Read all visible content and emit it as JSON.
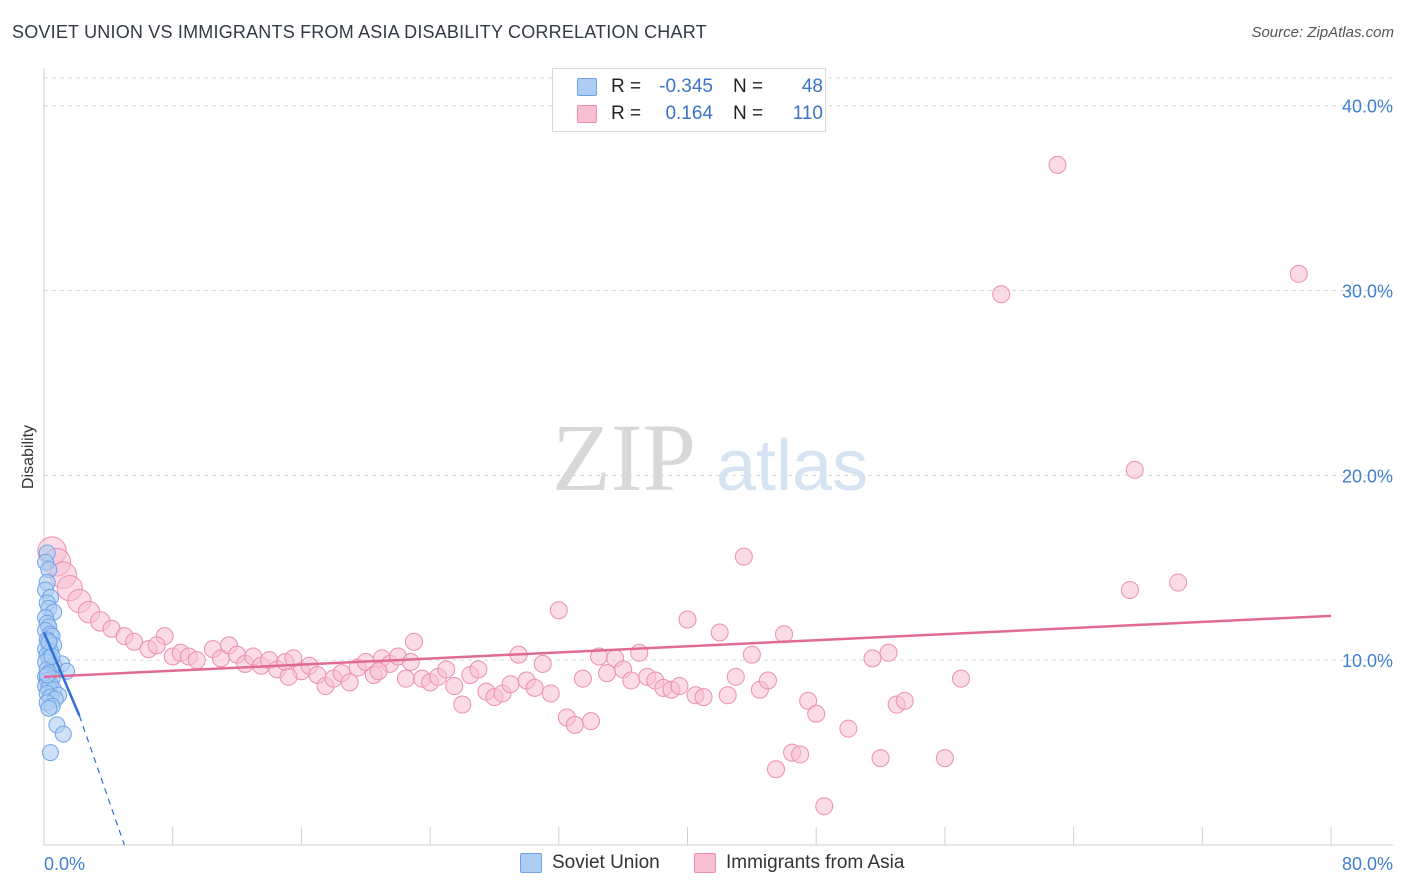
{
  "header": {
    "title": "SOVIET UNION VS IMMIGRANTS FROM ASIA DISABILITY CORRELATION CHART",
    "source": "Source: ZipAtlas.com"
  },
  "watermark": {
    "zip": "ZIP",
    "atlas": "atlas"
  },
  "legend": {
    "rows": [
      {
        "r_label": "R =",
        "r_value": "-0.345",
        "n_label": "N =",
        "n_value": "48"
      },
      {
        "r_label": "R =",
        "r_value": "0.164",
        "n_label": "N =",
        "n_value": "110"
      }
    ]
  },
  "bottom_legend": {
    "series1": "Soviet Union",
    "series2": "Immigrants from Asia"
  },
  "colors": {
    "soviet_fill": "#aecdf3",
    "soviet_stroke": "#6fa3e6",
    "soviet_line": "#2f6fd6",
    "asia_fill": "#f7bfd2",
    "asia_stroke": "#ec8fb0",
    "asia_line": "#e06a95",
    "tick_label": "#3f7fd1",
    "grid": "#d9d9d9"
  },
  "chart_data": {
    "type": "scatter",
    "title": "SOVIET UNION VS IMMIGRANTS FROM ASIA DISABILITY CORRELATION CHART",
    "xlabel": "",
    "ylabel": "Disability",
    "xlim": [
      0,
      80
    ],
    "ylim": [
      0,
      41.5
    ],
    "x_tick_labels": [
      "0.0%",
      "80.0%"
    ],
    "y_ticks": [
      10,
      20,
      30,
      40
    ],
    "y_tick_labels": [
      "10.0%",
      "20.0%",
      "30.0%",
      "40.0%"
    ],
    "grid": "horizontal dashed",
    "legend_placement": "top-center",
    "series": [
      {
        "name": "Soviet Union",
        "r": -0.345,
        "n": 48,
        "trend": {
          "x": [
            0,
            2.2
          ],
          "y": [
            11.5,
            7.0
          ],
          "dashed_to": [
            5.0,
            0.0
          ]
        },
        "points": [
          [
            0.2,
            15.8
          ],
          [
            0.1,
            15.3
          ],
          [
            0.3,
            14.9
          ],
          [
            0.2,
            14.2
          ],
          [
            0.1,
            13.8
          ],
          [
            0.4,
            13.4
          ],
          [
            0.2,
            13.1
          ],
          [
            0.3,
            12.8
          ],
          [
            0.6,
            12.6
          ],
          [
            0.1,
            12.3
          ],
          [
            0.2,
            12.0
          ],
          [
            0.3,
            11.8
          ],
          [
            0.1,
            11.6
          ],
          [
            0.4,
            11.4
          ],
          [
            0.5,
            11.3
          ],
          [
            0.2,
            11.1
          ],
          [
            0.3,
            10.9
          ],
          [
            0.6,
            10.8
          ],
          [
            0.1,
            10.6
          ],
          [
            0.4,
            10.5
          ],
          [
            0.2,
            10.3
          ],
          [
            0.3,
            10.1
          ],
          [
            0.1,
            9.9
          ],
          [
            1.1,
            9.8
          ],
          [
            0.6,
            9.7
          ],
          [
            0.2,
            9.5
          ],
          [
            1.4,
            9.4
          ],
          [
            0.3,
            9.3
          ],
          [
            0.1,
            9.1
          ],
          [
            0.5,
            9.0
          ],
          [
            0.2,
            8.9
          ],
          [
            0.4,
            8.7
          ],
          [
            0.1,
            8.6
          ],
          [
            0.3,
            8.5
          ],
          [
            0.6,
            8.4
          ],
          [
            0.2,
            8.2
          ],
          [
            0.9,
            8.1
          ],
          [
            0.4,
            8.0
          ],
          [
            0.7,
            7.9
          ],
          [
            0.2,
            7.7
          ],
          [
            0.5,
            7.5
          ],
          [
            0.3,
            7.4
          ],
          [
            0.8,
            6.5
          ],
          [
            1.2,
            6.0
          ],
          [
            0.4,
            5.0
          ],
          [
            0.2,
            9.2
          ],
          [
            0.3,
            11.0
          ],
          [
            0.5,
            10.2
          ]
        ]
      },
      {
        "name": "Immigrants from Asia",
        "r": 0.164,
        "n": 110,
        "trend": {
          "x": [
            0,
            80
          ],
          "y": [
            9.1,
            12.4
          ]
        },
        "points": [
          [
            0.5,
            15.9
          ],
          [
            0.8,
            15.3
          ],
          [
            1.2,
            14.6
          ],
          [
            1.6,
            13.9
          ],
          [
            2.2,
            13.2
          ],
          [
            2.8,
            12.6
          ],
          [
            3.5,
            12.1
          ],
          [
            4.2,
            11.7
          ],
          [
            5.0,
            11.3
          ],
          [
            5.6,
            11.0
          ],
          [
            7.5,
            11.3
          ],
          [
            6.5,
            10.6
          ],
          [
            7.0,
            10.8
          ],
          [
            8.0,
            10.2
          ],
          [
            8.5,
            10.4
          ],
          [
            9.0,
            10.2
          ],
          [
            9.5,
            10.0
          ],
          [
            10.5,
            10.6
          ],
          [
            11.0,
            10.1
          ],
          [
            11.5,
            10.8
          ],
          [
            12.0,
            10.3
          ],
          [
            12.5,
            9.8
          ],
          [
            13.0,
            10.2
          ],
          [
            13.5,
            9.7
          ],
          [
            14.0,
            10.0
          ],
          [
            14.5,
            9.5
          ],
          [
            15.0,
            9.9
          ],
          [
            15.5,
            10.1
          ],
          [
            16.0,
            9.4
          ],
          [
            16.5,
            9.7
          ],
          [
            17.0,
            9.2
          ],
          [
            17.5,
            8.6
          ],
          [
            18.0,
            9.0
          ],
          [
            18.5,
            9.3
          ],
          [
            19.0,
            8.8
          ],
          [
            19.5,
            9.6
          ],
          [
            20.0,
            9.9
          ],
          [
            20.5,
            9.2
          ],
          [
            21.0,
            10.1
          ],
          [
            21.5,
            9.8
          ],
          [
            22.0,
            10.2
          ],
          [
            22.5,
            9.0
          ],
          [
            23.0,
            11.0
          ],
          [
            23.5,
            9.0
          ],
          [
            24.0,
            8.8
          ],
          [
            24.5,
            9.1
          ],
          [
            25.0,
            9.5
          ],
          [
            25.5,
            8.6
          ],
          [
            26.0,
            7.6
          ],
          [
            26.5,
            9.2
          ],
          [
            27.0,
            9.5
          ],
          [
            27.5,
            8.3
          ],
          [
            28.0,
            8.0
          ],
          [
            28.5,
            8.2
          ],
          [
            29.0,
            8.7
          ],
          [
            29.5,
            10.3
          ],
          [
            30.0,
            8.9
          ],
          [
            30.5,
            8.5
          ],
          [
            31.0,
            9.8
          ],
          [
            31.5,
            8.2
          ],
          [
            32.0,
            12.7
          ],
          [
            32.5,
            6.9
          ],
          [
            33.0,
            6.5
          ],
          [
            33.5,
            9.0
          ],
          [
            34.0,
            6.7
          ],
          [
            34.5,
            10.2
          ],
          [
            35.0,
            9.3
          ],
          [
            35.5,
            10.1
          ],
          [
            36.0,
            9.5
          ],
          [
            36.5,
            8.9
          ],
          [
            37.0,
            10.4
          ],
          [
            37.5,
            9.1
          ],
          [
            38.0,
            8.9
          ],
          [
            38.5,
            8.5
          ],
          [
            39.0,
            8.4
          ],
          [
            39.5,
            8.6
          ],
          [
            40.0,
            12.2
          ],
          [
            40.5,
            8.1
          ],
          [
            41.0,
            8.0
          ],
          [
            42.0,
            11.5
          ],
          [
            42.5,
            8.1
          ],
          [
            43.0,
            9.1
          ],
          [
            43.5,
            15.6
          ],
          [
            44.0,
            10.3
          ],
          [
            44.5,
            8.4
          ],
          [
            45.0,
            8.9
          ],
          [
            45.5,
            4.1
          ],
          [
            46.0,
            11.4
          ],
          [
            46.5,
            5.0
          ],
          [
            47.0,
            4.9
          ],
          [
            47.5,
            7.8
          ],
          [
            48.0,
            7.1
          ],
          [
            48.5,
            2.1
          ],
          [
            50.0,
            6.3
          ],
          [
            51.5,
            10.1
          ],
          [
            52.0,
            4.7
          ],
          [
            52.5,
            10.4
          ],
          [
            53.0,
            7.6
          ],
          [
            53.5,
            7.8
          ],
          [
            56.0,
            4.7
          ],
          [
            57.0,
            9.0
          ],
          [
            59.5,
            29.8
          ],
          [
            63.0,
            36.8
          ],
          [
            67.5,
            13.8
          ],
          [
            67.8,
            20.3
          ],
          [
            70.5,
            14.2
          ],
          [
            78.0,
            30.9
          ],
          [
            20.8,
            9.4
          ],
          [
            22.8,
            9.9
          ],
          [
            15.2,
            9.1
          ]
        ]
      }
    ]
  }
}
